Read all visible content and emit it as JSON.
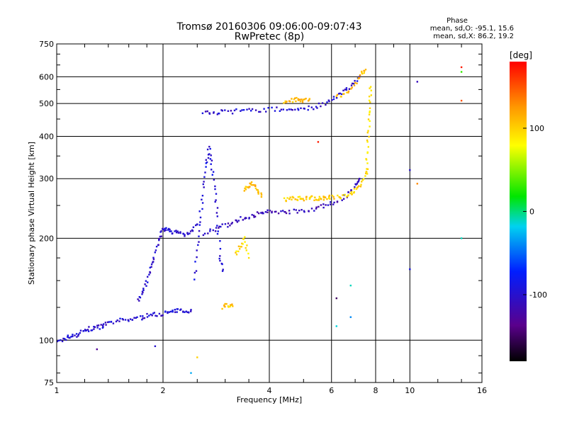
{
  "chart_data": {
    "type": "scatter",
    "title": "Tromsø 20160306 09:06:00-09:07:43",
    "subtitle": "RwPretec (8p)",
    "xlabel": "Frequency [MHz]",
    "ylabel": "Stationary phase Virtual Height [km]",
    "x_scale": "log",
    "y_scale": "log",
    "xlim": [
      1,
      16
    ],
    "ylim": [
      75,
      750
    ],
    "x_ticks": [
      1,
      2,
      4,
      6,
      8,
      10,
      16
    ],
    "x_tick_labels": [
      "1",
      "2",
      "4",
      "6",
      "8",
      "10",
      "16"
    ],
    "y_ticks": [
      75,
      100,
      200,
      300,
      400,
      500,
      600,
      750
    ],
    "y_tick_labels": [
      "75",
      "100",
      "200",
      "300",
      "400",
      "500",
      "600",
      "750"
    ],
    "grid": true,
    "phase_info": {
      "heading": "Phase",
      "line_o": "mean, sd,O: -95.1, 15.6",
      "line_x": "mean, sd,X: 86.2, 19.2"
    },
    "colorbar": {
      "label": "[deg]",
      "range": [
        -180,
        180
      ],
      "ticks": [
        100,
        0,
        -100
      ],
      "tick_labels": [
        "100",
        "0",
        "-100"
      ]
    },
    "traces": [
      {
        "f": [
          1.0,
          1.05,
          1.1,
          1.15,
          1.2,
          1.25,
          1.3,
          1.35,
          1.4,
          1.5,
          1.6,
          1.7,
          1.8,
          1.9,
          2.0,
          2.1,
          2.2,
          2.3,
          2.4
        ],
        "h": [
          98,
          101,
          103,
          104,
          107,
          108,
          109,
          110,
          112,
          114,
          115,
          116,
          118,
          119,
          120,
          121,
          122,
          122,
          123
        ],
        "phase": -100
      },
      {
        "f": [
          1.7,
          1.75,
          1.8,
          1.85,
          1.9,
          1.95,
          2.0,
          2.05,
          2.1,
          2.2,
          2.3,
          2.4,
          2.5
        ],
        "h": [
          130,
          140,
          150,
          165,
          180,
          200,
          210,
          212,
          210,
          208,
          205,
          210,
          220
        ],
        "phase": -100
      },
      {
        "f": [
          2.45,
          2.5,
          2.55,
          2.6,
          2.65,
          2.7,
          2.75,
          2.8,
          2.85,
          2.9,
          2.95
        ],
        "h": [
          150,
          190,
          230,
          280,
          330,
          370,
          330,
          280,
          230,
          180,
          160
        ],
        "phase": -95
      },
      {
        "f": [
          2.6,
          2.8,
          3.0,
          3.2,
          3.4,
          3.6,
          3.8,
          4.0,
          4.3,
          4.6,
          5.0,
          5.4,
          5.8,
          6.2,
          6.6,
          7.0,
          7.2
        ],
        "h": [
          205,
          212,
          218,
          224,
          230,
          234,
          237,
          239,
          240,
          240,
          242,
          245,
          250,
          257,
          268,
          285,
          300
        ],
        "phase": -110
      },
      {
        "f": [
          2.6,
          2.8,
          3.0,
          3.3,
          3.6,
          4.0,
          4.4,
          4.8,
          5.2,
          5.6,
          6.0,
          6.4,
          6.8,
          7.2
        ],
        "h": [
          470,
          470,
          472,
          475,
          478,
          480,
          480,
          482,
          485,
          495,
          510,
          535,
          565,
          600
        ],
        "phase": -100
      },
      {
        "f": [
          4.4,
          4.6,
          4.8,
          5.0,
          5.2,
          5.4,
          5.6,
          5.8,
          6.0,
          6.4,
          6.8,
          7.0,
          7.3,
          7.5,
          7.6
        ],
        "h": [
          260,
          263,
          262,
          262,
          264,
          262,
          263,
          262,
          264,
          266,
          270,
          278,
          290,
          310,
          320
        ],
        "phase": 100
      },
      {
        "f": [
          6.2,
          6.6,
          7.0,
          7.3,
          7.5
        ],
        "h": [
          520,
          540,
          575,
          610,
          630
        ],
        "phase": 110
      },
      {
        "f": [
          7.55,
          7.6,
          7.65,
          7.7,
          7.75
        ],
        "h": [
          330,
          380,
          440,
          500,
          560
        ],
        "phase": 90
      },
      {
        "f": [
          4.4,
          4.6,
          4.8,
          5.0,
          5.2
        ],
        "h": [
          505,
          510,
          515,
          512,
          516
        ],
        "phase": 110
      },
      {
        "f": [
          3.2,
          3.3,
          3.4,
          3.5
        ],
        "h": [
          180,
          190,
          200,
          175
        ],
        "phase": 95
      },
      {
        "f": [
          2.95,
          3.05,
          3.15
        ],
        "h": [
          125,
          127,
          126
        ],
        "phase": 105
      },
      {
        "f": [
          3.4,
          3.5,
          3.6,
          3.7,
          3.8
        ],
        "h": [
          280,
          285,
          290,
          275,
          265
        ],
        "phase": 110
      }
    ],
    "isolated_points": [
      {
        "f": 14.0,
        "h": 640,
        "phase": 170
      },
      {
        "f": 14.0,
        "h": 620,
        "phase": 30
      },
      {
        "f": 14.0,
        "h": 510,
        "phase": 150
      },
      {
        "f": 14.0,
        "h": 200,
        "phase": -10
      },
      {
        "f": 10.0,
        "h": 162,
        "phase": -90
      },
      {
        "f": 10.0,
        "h": 318,
        "phase": -100
      },
      {
        "f": 10.5,
        "h": 580,
        "phase": -110
      },
      {
        "f": 10.5,
        "h": 290,
        "phase": 130
      },
      {
        "f": 6.8,
        "h": 145,
        "phase": -10
      },
      {
        "f": 6.8,
        "h": 117,
        "phase": -40
      },
      {
        "f": 6.2,
        "h": 133,
        "phase": -150
      },
      {
        "f": 6.2,
        "h": 110,
        "phase": -15
      },
      {
        "f": 2.4,
        "h": 80,
        "phase": -30
      },
      {
        "f": 2.5,
        "h": 89,
        "phase": 100
      },
      {
        "f": 1.9,
        "h": 96,
        "phase": -100
      },
      {
        "f": 1.3,
        "h": 94,
        "phase": -130
      },
      {
        "f": 5.5,
        "h": 385,
        "phase": 170
      }
    ]
  }
}
